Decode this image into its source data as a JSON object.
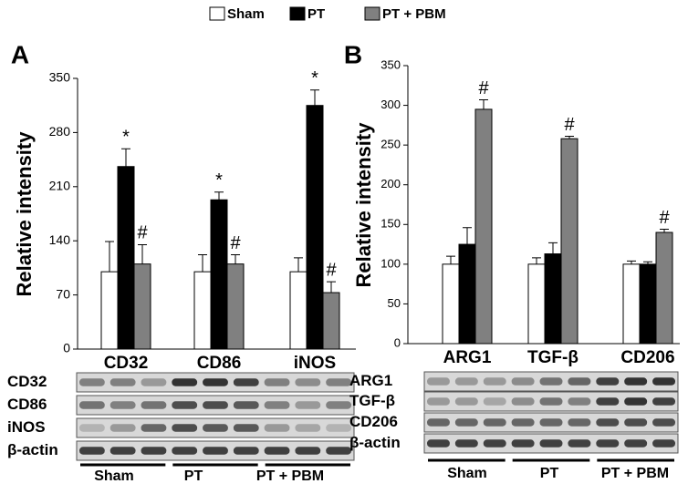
{
  "chart_data": [
    {
      "type": "bar",
      "panel": "A",
      "ylabel": "Relative intensity",
      "categories": [
        "CD32",
        "CD86",
        "iNOS"
      ],
      "ylim": [
        0,
        350
      ],
      "yticks": [
        0,
        70,
        140,
        210,
        280,
        350
      ],
      "series": [
        {
          "name": "Sham",
          "color": "#ffffff",
          "values": [
            100,
            100,
            100
          ],
          "errors": [
            39,
            22,
            18
          ],
          "markers": [
            null,
            null,
            null
          ]
        },
        {
          "name": "PT",
          "color": "#000000",
          "values": [
            236,
            193,
            315
          ],
          "errors": [
            23,
            10,
            20
          ],
          "markers": [
            "*",
            "*",
            "*"
          ]
        },
        {
          "name": "PT + PBM",
          "color": "#808080",
          "values": [
            110,
            110,
            73
          ],
          "errors": [
            25,
            12,
            14
          ],
          "markers": [
            "#",
            "#",
            "#"
          ]
        }
      ]
    },
    {
      "type": "bar",
      "panel": "B",
      "ylabel": "Relative intensity",
      "categories": [
        "ARG1",
        "TGF-β",
        "CD206"
      ],
      "ylim": [
        0,
        350
      ],
      "yticks": [
        0,
        50,
        100,
        150,
        200,
        250,
        300,
        350
      ],
      "series": [
        {
          "color": "#ffffff",
          "values": [
            100,
            100,
            100
          ],
          "errors": [
            10,
            8,
            4
          ],
          "markers": [
            null,
            null,
            null
          ]
        },
        {
          "color": "#000000",
          "values": [
            125,
            113,
            100
          ],
          "errors": [
            21,
            14,
            3
          ],
          "markers": [
            null,
            null,
            null
          ]
        },
        {
          "color": "#808080",
          "values": [
            295,
            258,
            140
          ],
          "errors": [
            12,
            3,
            4
          ],
          "markers": [
            "#",
            "#",
            "#"
          ]
        }
      ]
    }
  ],
  "blots": [
    {
      "rows": [
        "CD32",
        "CD86",
        "iNOS",
        "β-actin"
      ],
      "groups": [
        "Sham",
        "PT",
        "PT + PBM"
      ]
    },
    {
      "rows": [
        "ARG1",
        "TGF-β",
        "CD206",
        "β-actin"
      ],
      "groups": [
        "Sham",
        "PT",
        "PT + PBM"
      ]
    }
  ]
}
